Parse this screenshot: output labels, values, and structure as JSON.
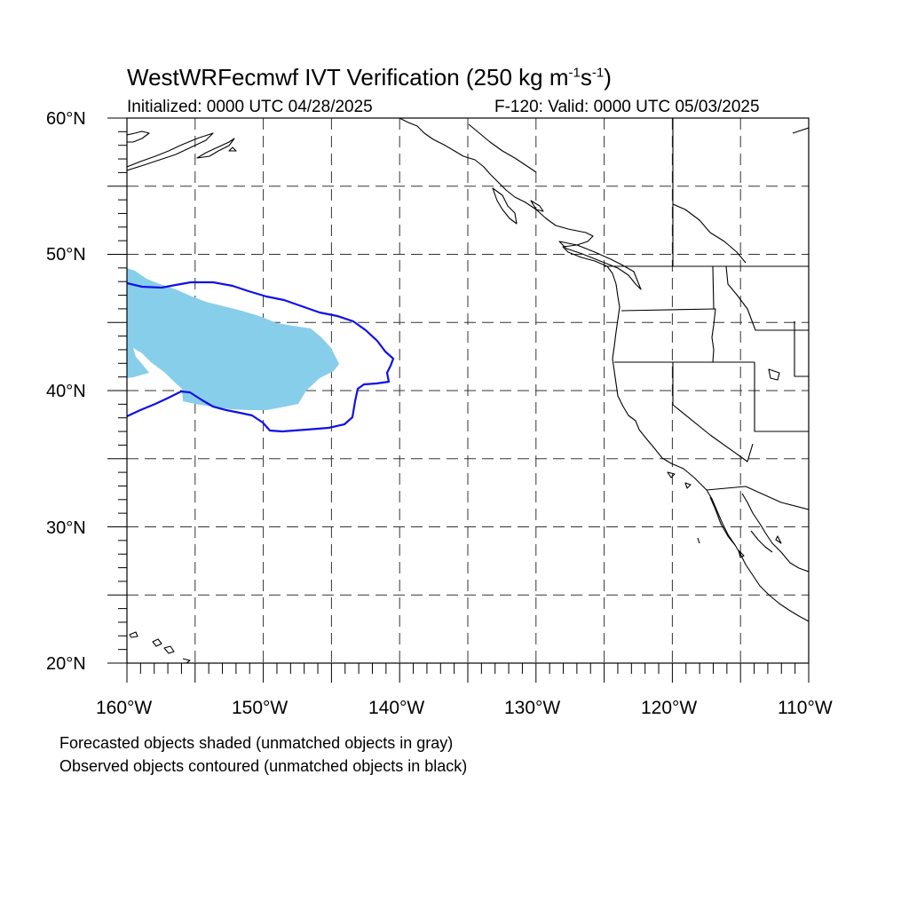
{
  "header": {
    "title_main": "WestWRFecmwf IVT Verification (250 kg m",
    "title_exp1": "-1",
    "title_mid": "s",
    "title_exp2": "-1",
    "title_end": ")",
    "initialized": "Initialized: 0000 UTC 04/28/2025",
    "valid": "F-120: Valid: 0000 UTC 05/03/2025"
  },
  "axes": {
    "lat_labels": [
      "60°N",
      "50°N",
      "40°N",
      "30°N",
      "20°N"
    ],
    "lon_labels": [
      "160°W",
      "150°W",
      "140°W",
      "130°W",
      "120°W",
      "110°W"
    ],
    "lat_range": [
      20,
      60
    ],
    "lon_range": [
      -160,
      -110
    ],
    "grid": "dashed every 5 degrees"
  },
  "legend": {
    "line1": "Forecasted objects shaded (unmatched objects in gray)",
    "line2": "Observed objects contoured (unmatched objects in black)"
  },
  "colors": {
    "forecast_fill": "#87ceeb",
    "observed_contour": "#1010e6",
    "coastline": "#000000",
    "grid": "#333333"
  }
}
